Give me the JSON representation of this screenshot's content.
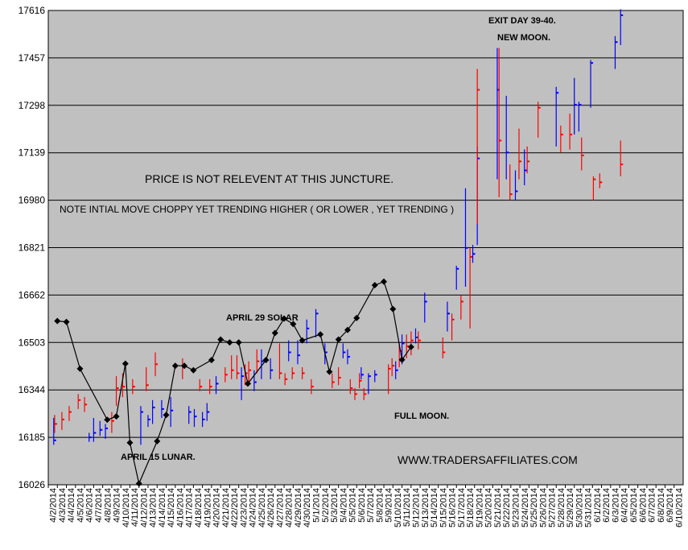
{
  "chart_data": {
    "type": "line",
    "ylim": [
      16026,
      17616
    ],
    "yticks": [
      "16026",
      "16185",
      "16344",
      "16503",
      "16662",
      "16821",
      "16980",
      "17139",
      "17298",
      "17457",
      "17616"
    ],
    "grid": true,
    "colors": {
      "plot_bg": "#c0c0c0",
      "up_bar": "#0000ff",
      "down_bar": "#ff0000",
      "line": "#000000",
      "grid": "#000000"
    },
    "x_categories": [
      "4/2/2014",
      "4/3/2014",
      "4/4/2014",
      "4/5/2014",
      "4/6/2014",
      "4/7/2014",
      "4/8/2014",
      "4/9/2014",
      "4/10/2014",
      "4/11/2014",
      "4/12/2014",
      "4/13/2014",
      "4/14/2014",
      "4/15/2014",
      "4/16/2014",
      "4/17/2014",
      "4/18/2014",
      "4/19/2014",
      "4/20/2014",
      "4/21/2014",
      "4/22/2014",
      "4/23/2014",
      "4/24/2014",
      "4/25/2014",
      "4/26/2014",
      "4/27/2014",
      "4/28/2014",
      "4/29/2014",
      "4/30/2014",
      "5/1/2014",
      "5/2/2014",
      "5/3/2014",
      "5/4/2014",
      "5/5/2014",
      "5/6/2014",
      "5/7/2014",
      "5/8/2014",
      "5/9/2014",
      "5/10/2014",
      "5/11/2014",
      "5/12/2014",
      "5/13/2014",
      "5/14/2014",
      "5/15/2014",
      "5/16/2014",
      "5/17/2014",
      "5/18/2014",
      "5/19/2014",
      "5/20/2014",
      "5/21/2014",
      "5/22/2014",
      "5/23/2014",
      "5/24/2014",
      "5/25/2014",
      "5/26/2014",
      "5/27/2014",
      "5/28/2014",
      "5/29/2014",
      "5/30/2014",
      "5/31/2014",
      "6/1/2014",
      "6/2/2014",
      "6/3/2014",
      "6/4/2014",
      "6/5/2014",
      "6/6/2014",
      "6/7/2014",
      "6/8/2014",
      "6/9/2014",
      "6/10/2014"
    ],
    "line_series": [
      {
        "x": 0.5,
        "y": 16575
      },
      {
        "x": 1.5,
        "y": 16572
      },
      {
        "x": 3.0,
        "y": 16415
      },
      {
        "x": 6.0,
        "y": 16244
      },
      {
        "x": 7.0,
        "y": 16255
      },
      {
        "x": 8.0,
        "y": 16432
      },
      {
        "x": 8.5,
        "y": 16167
      },
      {
        "x": 9.5,
        "y": 16030
      },
      {
        "x": 11.5,
        "y": 16172
      },
      {
        "x": 12.5,
        "y": 16260
      },
      {
        "x": 13.5,
        "y": 16425
      },
      {
        "x": 14.5,
        "y": 16425
      },
      {
        "x": 15.5,
        "y": 16410
      },
      {
        "x": 17.5,
        "y": 16444
      },
      {
        "x": 18.5,
        "y": 16513
      },
      {
        "x": 19.5,
        "y": 16503
      },
      {
        "x": 20.5,
        "y": 16503
      },
      {
        "x": 21.5,
        "y": 16365
      },
      {
        "x": 23.5,
        "y": 16444
      },
      {
        "x": 24.5,
        "y": 16535
      },
      {
        "x": 25.5,
        "y": 16583
      },
      {
        "x": 26.5,
        "y": 16565
      },
      {
        "x": 27.5,
        "y": 16510
      },
      {
        "x": 29.5,
        "y": 16530
      },
      {
        "x": 30.5,
        "y": 16405
      },
      {
        "x": 31.5,
        "y": 16513
      },
      {
        "x": 32.5,
        "y": 16545
      },
      {
        "x": 33.5,
        "y": 16585
      },
      {
        "x": 35.5,
        "y": 16695
      },
      {
        "x": 36.5,
        "y": 16707
      },
      {
        "x": 37.5,
        "y": 16615
      },
      {
        "x": 38.5,
        "y": 16445
      },
      {
        "x": 39.5,
        "y": 16488
      }
    ],
    "bars": [
      {
        "x": 0.1,
        "low": 16160,
        "high": 16250,
        "close": 16175,
        "color": "blue"
      },
      {
        "x": 0.2,
        "low": 16200,
        "high": 16260,
        "close": 16230,
        "color": "red"
      },
      {
        "x": 1.0,
        "low": 16210,
        "high": 16270,
        "close": 16245,
        "color": "red"
      },
      {
        "x": 1.8,
        "low": 16240,
        "high": 16290,
        "close": 16270,
        "color": "red"
      },
      {
        "x": 2.8,
        "low": 16280,
        "high": 16330,
        "close": 16310,
        "color": "red"
      },
      {
        "x": 3.5,
        "low": 16270,
        "high": 16320,
        "close": 16295,
        "color": "red"
      },
      {
        "x": 4.0,
        "low": 16170,
        "high": 16200,
        "close": 16185,
        "color": "blue"
      },
      {
        "x": 4.5,
        "low": 16170,
        "high": 16250,
        "close": 16200,
        "color": "blue"
      },
      {
        "x": 5.2,
        "low": 16190,
        "high": 16240,
        "close": 16210,
        "color": "blue"
      },
      {
        "x": 5.8,
        "low": 16180,
        "high": 16230,
        "close": 16215,
        "color": "blue"
      },
      {
        "x": 6.5,
        "low": 16200,
        "high": 16270,
        "close": 16240,
        "color": "red"
      },
      {
        "x": 7.0,
        "low": 16290,
        "high": 16390,
        "close": 16350,
        "color": "red"
      },
      {
        "x": 7.7,
        "low": 16320,
        "high": 16400,
        "close": 16355,
        "color": "red"
      },
      {
        "x": 8.8,
        "low": 16330,
        "high": 16380,
        "close": 16355,
        "color": "red"
      },
      {
        "x": 9.7,
        "low": 16160,
        "high": 16290,
        "close": 16270,
        "color": "blue"
      },
      {
        "x": 10.5,
        "low": 16220,
        "high": 16260,
        "close": 16245,
        "color": "blue"
      },
      {
        "x": 10.3,
        "low": 16340,
        "high": 16420,
        "close": 16360,
        "color": "red"
      },
      {
        "x": 11.3,
        "low": 16390,
        "high": 16470,
        "close": 16430,
        "color": "red"
      },
      {
        "x": 11.0,
        "low": 16230,
        "high": 16310,
        "close": 16285,
        "color": "blue"
      },
      {
        "x": 12.0,
        "low": 16250,
        "high": 16310,
        "close": 16280,
        "color": "blue"
      },
      {
        "x": 13.0,
        "low": 16220,
        "high": 16320,
        "close": 16275,
        "color": "blue"
      },
      {
        "x": 14.3,
        "low": 16380,
        "high": 16450,
        "close": 16420,
        "color": "red"
      },
      {
        "x": 15.0,
        "low": 16230,
        "high": 16290,
        "close": 16270,
        "color": "blue"
      },
      {
        "x": 15.6,
        "low": 16220,
        "high": 16280,
        "close": 16255,
        "color": "blue"
      },
      {
        "x": 16.2,
        "low": 16340,
        "high": 16380,
        "close": 16355,
        "color": "red"
      },
      {
        "x": 16.5,
        "low": 16220,
        "high": 16270,
        "close": 16245,
        "color": "blue"
      },
      {
        "x": 17.0,
        "low": 16240,
        "high": 16300,
        "close": 16270,
        "color": "blue"
      },
      {
        "x": 17.3,
        "low": 16330,
        "high": 16380,
        "close": 16355,
        "color": "red"
      },
      {
        "x": 18.0,
        "low": 16330,
        "high": 16390,
        "close": 16365,
        "color": "blue"
      },
      {
        "x": 19.0,
        "low": 16370,
        "high": 16420,
        "close": 16395,
        "color": "red"
      },
      {
        "x": 19.7,
        "low": 16380,
        "high": 16460,
        "close": 16410,
        "color": "red"
      },
      {
        "x": 20.3,
        "low": 16380,
        "high": 16460,
        "close": 16400,
        "color": "red"
      },
      {
        "x": 20.8,
        "low": 16310,
        "high": 16420,
        "close": 16390,
        "color": "blue"
      },
      {
        "x": 21.2,
        "low": 16360,
        "high": 16430,
        "close": 16400,
        "color": "red"
      },
      {
        "x": 21.6,
        "low": 16360,
        "high": 16440,
        "close": 16410,
        "color": "red"
      },
      {
        "x": 22.2,
        "low": 16340,
        "high": 16410,
        "close": 16370,
        "color": "blue"
      },
      {
        "x": 22.5,
        "low": 16400,
        "high": 16480,
        "close": 16440,
        "color": "red"
      },
      {
        "x": 23.0,
        "low": 16380,
        "high": 16480,
        "close": 16440,
        "color": "blue"
      },
      {
        "x": 24.0,
        "low": 16380,
        "high": 16450,
        "close": 16410,
        "color": "blue"
      },
      {
        "x": 25.0,
        "low": 16380,
        "high": 16500,
        "close": 16400,
        "color": "red"
      },
      {
        "x": 25.6,
        "low": 16360,
        "high": 16400,
        "close": 16380,
        "color": "red"
      },
      {
        "x": 26.0,
        "low": 16440,
        "high": 16510,
        "close": 16470,
        "color": "blue"
      },
      {
        "x": 26.4,
        "low": 16380,
        "high": 16420,
        "close": 16400,
        "color": "red"
      },
      {
        "x": 27.0,
        "low": 16430,
        "high": 16510,
        "close": 16460,
        "color": "blue"
      },
      {
        "x": 27.5,
        "low": 16380,
        "high": 16420,
        "close": 16400,
        "color": "red"
      },
      {
        "x": 28.0,
        "low": 16500,
        "high": 16580,
        "close": 16550,
        "color": "blue"
      },
      {
        "x": 28.5,
        "low": 16330,
        "high": 16380,
        "close": 16355,
        "color": "red"
      },
      {
        "x": 29.0,
        "low": 16520,
        "high": 16615,
        "close": 16600,
        "color": "blue"
      },
      {
        "x": 30.0,
        "low": 16430,
        "high": 16500,
        "close": 16470,
        "color": "blue"
      },
      {
        "x": 30.8,
        "low": 16350,
        "high": 16400,
        "close": 16370,
        "color": "red"
      },
      {
        "x": 31.5,
        "low": 16360,
        "high": 16420,
        "close": 16385,
        "color": "red"
      },
      {
        "x": 32.0,
        "low": 16450,
        "high": 16500,
        "close": 16470,
        "color": "blue"
      },
      {
        "x": 32.5,
        "low": 16430,
        "high": 16480,
        "close": 16455,
        "color": "blue"
      },
      {
        "x": 32.8,
        "low": 16330,
        "high": 16380,
        "close": 16350,
        "color": "red"
      },
      {
        "x": 33.3,
        "low": 16310,
        "high": 16350,
        "close": 16330,
        "color": "red"
      },
      {
        "x": 33.8,
        "low": 16350,
        "high": 16400,
        "close": 16375,
        "color": "red"
      },
      {
        "x": 34.0,
        "low": 16380,
        "high": 16420,
        "close": 16395,
        "color": "blue"
      },
      {
        "x": 34.3,
        "low": 16310,
        "high": 16350,
        "close": 16330,
        "color": "red"
      },
      {
        "x": 34.8,
        "low": 16330,
        "high": 16400,
        "close": 16390,
        "color": "blue"
      },
      {
        "x": 35.5,
        "low": 16370,
        "high": 16410,
        "close": 16395,
        "color": "blue"
      },
      {
        "x": 37.0,
        "low": 16330,
        "high": 16430,
        "close": 16415,
        "color": "red"
      },
      {
        "x": 37.4,
        "low": 16390,
        "high": 16450,
        "close": 16425,
        "color": "red"
      },
      {
        "x": 37.8,
        "low": 16380,
        "high": 16440,
        "close": 16410,
        "color": "blue"
      },
      {
        "x": 38.2,
        "low": 16420,
        "high": 16500,
        "close": 16475,
        "color": "red"
      },
      {
        "x": 38.5,
        "low": 16430,
        "high": 16530,
        "close": 16500,
        "color": "blue"
      },
      {
        "x": 39.0,
        "low": 16450,
        "high": 16530,
        "close": 16490,
        "color": "red"
      },
      {
        "x": 39.5,
        "low": 16460,
        "high": 16540,
        "close": 16510,
        "color": "red"
      },
      {
        "x": 40.0,
        "low": 16500,
        "high": 16550,
        "close": 16520,
        "color": "blue"
      },
      {
        "x": 40.3,
        "low": 16480,
        "high": 16540,
        "close": 16510,
        "color": "red"
      },
      {
        "x": 41.0,
        "low": 16570,
        "high": 16670,
        "close": 16640,
        "color": "blue"
      },
      {
        "x": 43.0,
        "low": 16450,
        "high": 16520,
        "close": 16470,
        "color": "red"
      },
      {
        "x": 43.5,
        "low": 16540,
        "high": 16640,
        "close": 16600,
        "color": "blue"
      },
      {
        "x": 44.0,
        "low": 16510,
        "high": 16600,
        "close": 16580,
        "color": "red"
      },
      {
        "x": 44.5,
        "low": 16680,
        "high": 16760,
        "close": 16750,
        "color": "blue"
      },
      {
        "x": 45.0,
        "low": 16580,
        "high": 16660,
        "close": 16640,
        "color": "red"
      },
      {
        "x": 45.5,
        "low": 16690,
        "high": 17020,
        "close": 16820,
        "color": "blue"
      },
      {
        "x": 46.0,
        "low": 16550,
        "high": 16820,
        "close": 16790,
        "color": "red"
      },
      {
        "x": 46.3,
        "low": 16770,
        "high": 16830,
        "close": 16800,
        "color": "blue"
      },
      {
        "x": 46.8,
        "low": 16830,
        "high": 17160,
        "close": 17120,
        "color": "blue"
      },
      {
        "x": 46.8,
        "low": 16900,
        "high": 17420,
        "close": 17350,
        "color": "red"
      },
      {
        "x": 49.0,
        "low": 17050,
        "high": 17490,
        "close": 17350,
        "color": "blue"
      },
      {
        "x": 49.2,
        "low": 16990,
        "high": 17490,
        "close": 17180,
        "color": "red"
      },
      {
        "x": 50.0,
        "low": 17050,
        "high": 17330,
        "close": 17140,
        "color": "blue"
      },
      {
        "x": 50.4,
        "low": 16980,
        "high": 17100,
        "close": 17000,
        "color": "red"
      },
      {
        "x": 51.0,
        "low": 16980,
        "high": 17080,
        "close": 17010,
        "color": "blue"
      },
      {
        "x": 51.4,
        "low": 17050,
        "high": 17220,
        "close": 17110,
        "color": "red"
      },
      {
        "x": 52.0,
        "low": 17030,
        "high": 17150,
        "close": 17080,
        "color": "blue"
      },
      {
        "x": 52.3,
        "low": 17070,
        "high": 17160,
        "close": 17110,
        "color": "red"
      },
      {
        "x": 53.5,
        "low": 17190,
        "high": 17310,
        "close": 17290,
        "color": "red"
      },
      {
        "x": 55.5,
        "low": 17160,
        "high": 17360,
        "close": 17340,
        "color": "blue"
      },
      {
        "x": 56.0,
        "low": 17140,
        "high": 17230,
        "close": 17200,
        "color": "red"
      },
      {
        "x": 57.0,
        "low": 17150,
        "high": 17270,
        "close": 17200,
        "color": "red"
      },
      {
        "x": 57.5,
        "low": 17200,
        "high": 17390,
        "close": 17300,
        "color": "blue"
      },
      {
        "x": 58.0,
        "low": 17210,
        "high": 17310,
        "close": 17300,
        "color": "blue"
      },
      {
        "x": 58.3,
        "low": 17080,
        "high": 17190,
        "close": 17130,
        "color": "red"
      },
      {
        "x": 59.3,
        "low": 17290,
        "high": 17450,
        "close": 17440,
        "color": "blue"
      },
      {
        "x": 59.6,
        "low": 16980,
        "high": 17060,
        "close": 17050,
        "color": "red"
      },
      {
        "x": 60.3,
        "low": 17020,
        "high": 17070,
        "close": 17040,
        "color": "red"
      },
      {
        "x": 62.0,
        "low": 17420,
        "high": 17530,
        "close": 17510,
        "color": "blue"
      },
      {
        "x": 62.6,
        "low": 17500,
        "high": 17620,
        "close": 17600,
        "color": "blue"
      },
      {
        "x": 62.6,
        "low": 17060,
        "high": 17180,
        "close": 17100,
        "color": "red"
      }
    ]
  },
  "annotations": {
    "exit_day": "EXIT DAY 39-40.",
    "new_moon": "NEW MOON.",
    "price_note": "PRICE IS NOT RELEVENT AT THIS JUNCTURE.",
    "trend_note": "NOTE INTIAL MOVE CHOPPY YET TRENDING HIGHER ( OR LOWER , YET TRENDING )",
    "april29": "APRIL 29 SOLAR",
    "full_moon": "FULL MOON.",
    "april15": "APRIL 15 LUNAR.",
    "website": "WWW.TRADERSAFFILIATES.COM"
  }
}
